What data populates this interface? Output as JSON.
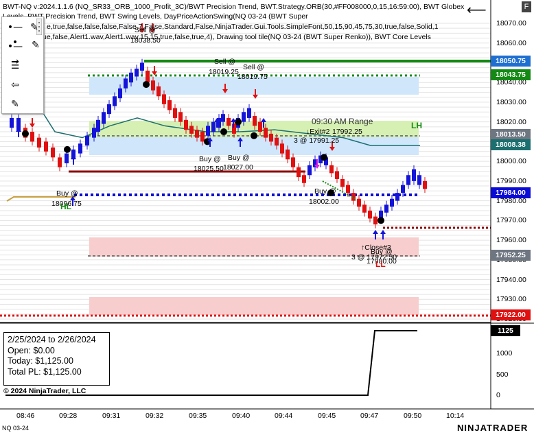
{
  "header": {
    "line1": "BWT-NQ v:2024.1.1.6 (NQ_SR33_ORB_1000_Profit_3C)/BWT Precision Trend, BWT.Strategy.ORB(30,#FF008000,0,15,16:59:00), BWT Globex",
    "line2": "Levels, BWT Precision Trend, BWT Swing Levels, DayPriceActionSwing(NQ 03-24 (BWT Super",
    "line3": "e,true,false,false,false,False,7,False,Standard,False,NinjaTrader.Gui.Tools.SimpleFont,50,15,90,45,75,30,true,false,Solid,1",
    "line4": "ue,false,Alert1.wav,Alert1.wav,15,15,true,false,true,4), Drawing tool tile(NQ 03-24 (BWT Super Renko)), BWT Core Levels"
  },
  "toolbar": {
    "tools": [
      "line-tool-icon",
      "ray-tool-icon",
      "horizontal-lines-icon",
      "arrow-tool-icon",
      "pencil-icon",
      "pencil-icon"
    ]
  },
  "price_axis": {
    "ticks": [
      "18070.00",
      "18060.00",
      "18050.00",
      "18040.00",
      "18030.00",
      "18020.00",
      "18010.00",
      "18000.00",
      "17990.00",
      "17980.00",
      "17970.00",
      "17960.00",
      "17950.00",
      "17940.00",
      "17930.00",
      "17920.00"
    ],
    "badges": [
      {
        "label": "18050.75",
        "color": "#1f6fd1"
      },
      {
        "label": "18043.75",
        "color": "#138a13"
      },
      {
        "label": "18013.50",
        "color": "#6e7681"
      },
      {
        "label": "18008.38",
        "color": "#1c6f6f"
      },
      {
        "label": "17984.00",
        "color": "#0b0bd6"
      },
      {
        "label": "17952.25",
        "color": "#6e7681"
      },
      {
        "label": "17922.00",
        "color": "#e01010"
      }
    ]
  },
  "pl_axis": {
    "ticks": [
      "1000",
      "500",
      "0"
    ],
    "badge": "1125"
  },
  "time_axis": {
    "ticks": [
      "08:46",
      "09:28",
      "09:31",
      "09:32",
      "09:35",
      "09:40",
      "09:44",
      "09:45",
      "09:47",
      "09:50",
      "10:14"
    ]
  },
  "pl_panel": {
    "range": "2/25/2024 to 2/26/2024",
    "open": "Open: $0.00",
    "today": "Today: $1,125.00",
    "total": "Total PL: $1,125.00"
  },
  "annotations": {
    "sell1": "Sell @",
    "sell1_price": "18038.50",
    "sell2": "Sell @",
    "sell2_price": "18019.25",
    "sell3": "Sell @",
    "sell3_price": "18019.75",
    "buy1": "Buy @",
    "buy1_price": "18096.75",
    "buy2": "Buy @",
    "buy2_price": "18025.50",
    "buy3": "Buy @",
    "buy3_price": "18027.00",
    "buy4": "Buy @",
    "buy4_price": "18002.00",
    "orb": "09:30 AM Range",
    "exit1": "↓Exit#2",
    "exit1_price": "17992.25",
    "exit2": "3 @ 17991.25",
    "close3": "↑Close#3",
    "close3b": "3 @ 17972.50",
    "buy5": "Buy @",
    "buy5_price": "17980.00",
    "lh": "LH",
    "hl": "HL",
    "ll": "LL"
  },
  "footer": {
    "copyright": "© 2024 NinjaTrader, LLC",
    "instrument": "NQ 03-24",
    "brand": "NINJATRADER",
    "f_button": "F"
  },
  "colors": {
    "up_bar": "#1414d9",
    "down_bar": "#e01010",
    "green_line": "#138a13",
    "dotted_blue": "#0b0bd6",
    "teal_line": "#1c6f6f"
  }
}
